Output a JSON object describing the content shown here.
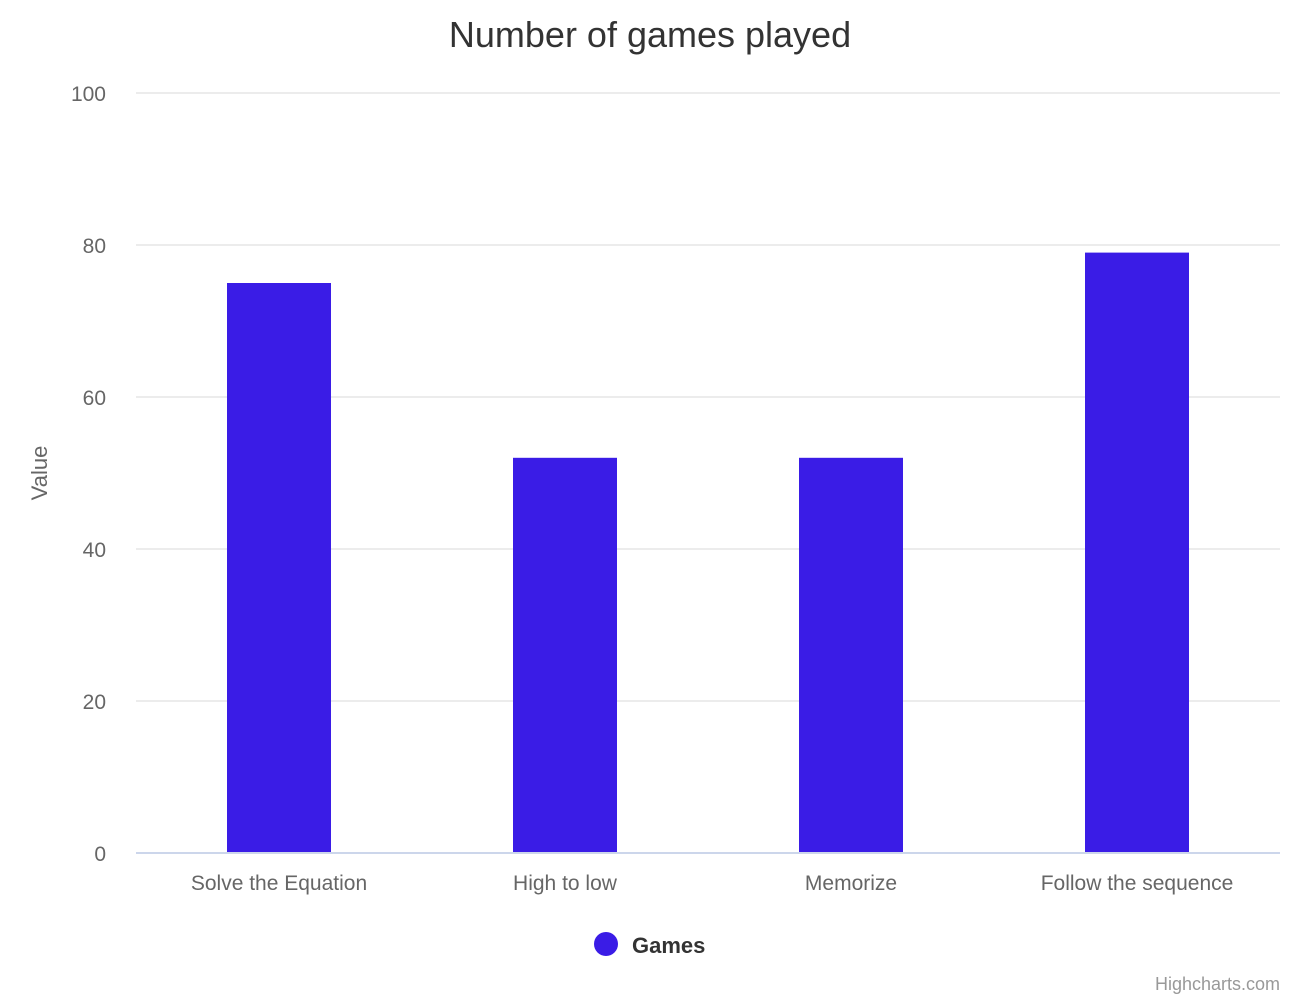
{
  "chart_data": {
    "type": "bar",
    "title": "Number of games played",
    "ylabel": "Value",
    "xlabel": "",
    "categories": [
      "Solve the Equation",
      "High to low",
      "Memorize",
      "Follow the sequence"
    ],
    "series": [
      {
        "name": "Games",
        "values": [
          75,
          52,
          52,
          79
        ],
        "color": "#3a1ce6"
      }
    ],
    "ylim": [
      0,
      100
    ],
    "yticks": [
      0,
      20,
      40,
      60,
      80,
      100
    ],
    "grid": true,
    "legend_position": "bottom-center"
  },
  "credits": "Highcharts.com"
}
